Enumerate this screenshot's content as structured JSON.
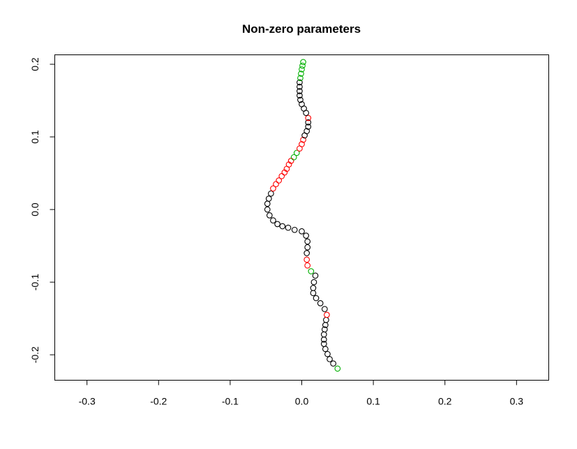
{
  "chart_data": {
    "type": "scatter",
    "title": "Non-zero parameters",
    "xlabel": "",
    "ylabel": "",
    "xlim": [
      -0.345,
      0.345
    ],
    "ylim": [
      -0.235,
      0.213
    ],
    "x_ticks": [
      -0.3,
      -0.2,
      -0.1,
      0.0,
      0.1,
      0.2,
      0.3
    ],
    "x_tick_labels": [
      "-0.3",
      "-0.2",
      "-0.1",
      "0.0",
      "0.1",
      "0.2",
      "0.3"
    ],
    "y_ticks": [
      -0.2,
      -0.1,
      0.0,
      0.1,
      0.2
    ],
    "y_tick_labels": [
      "-0.2",
      "-0.1",
      "0.0",
      "0.1",
      "0.2"
    ],
    "grid": false,
    "legend": "none",
    "colors": {
      "black": "#000000",
      "red": "#ff0000",
      "green": "#00b000"
    },
    "points": [
      {
        "x": 0.05,
        "y": -0.219,
        "c": "green"
      },
      {
        "x": 0.044,
        "y": -0.212,
        "c": "black"
      },
      {
        "x": 0.039,
        "y": -0.206,
        "c": "black"
      },
      {
        "x": 0.036,
        "y": -0.199,
        "c": "black"
      },
      {
        "x": 0.033,
        "y": -0.192,
        "c": "black"
      },
      {
        "x": 0.031,
        "y": -0.185,
        "c": "black"
      },
      {
        "x": 0.031,
        "y": -0.179,
        "c": "black"
      },
      {
        "x": 0.031,
        "y": -0.172,
        "c": "black"
      },
      {
        "x": 0.032,
        "y": -0.165,
        "c": "black"
      },
      {
        "x": 0.033,
        "y": -0.159,
        "c": "black"
      },
      {
        "x": 0.034,
        "y": -0.152,
        "c": "black"
      },
      {
        "x": 0.035,
        "y": -0.145,
        "c": "red"
      },
      {
        "x": 0.032,
        "y": -0.137,
        "c": "black"
      },
      {
        "x": 0.026,
        "y": -0.129,
        "c": "black"
      },
      {
        "x": 0.02,
        "y": -0.122,
        "c": "black"
      },
      {
        "x": 0.016,
        "y": -0.115,
        "c": "black"
      },
      {
        "x": 0.016,
        "y": -0.108,
        "c": "black"
      },
      {
        "x": 0.017,
        "y": -0.1,
        "c": "black"
      },
      {
        "x": 0.019,
        "y": -0.091,
        "c": "black"
      },
      {
        "x": 0.013,
        "y": -0.085,
        "c": "green"
      },
      {
        "x": 0.008,
        "y": -0.077,
        "c": "red"
      },
      {
        "x": 0.007,
        "y": -0.069,
        "c": "red"
      },
      {
        "x": 0.007,
        "y": -0.06,
        "c": "black"
      },
      {
        "x": 0.008,
        "y": -0.052,
        "c": "black"
      },
      {
        "x": 0.008,
        "y": -0.044,
        "c": "black"
      },
      {
        "x": 0.006,
        "y": -0.036,
        "c": "black"
      },
      {
        "x": 0.0,
        "y": -0.03,
        "c": "black"
      },
      {
        "x": -0.01,
        "y": -0.028,
        "c": "black"
      },
      {
        "x": -0.019,
        "y": -0.025,
        "c": "black"
      },
      {
        "x": -0.027,
        "y": -0.023,
        "c": "black"
      },
      {
        "x": -0.034,
        "y": -0.02,
        "c": "black"
      },
      {
        "x": -0.04,
        "y": -0.015,
        "c": "black"
      },
      {
        "x": -0.045,
        "y": -0.008,
        "c": "black"
      },
      {
        "x": -0.048,
        "y": 0.0,
        "c": "black"
      },
      {
        "x": -0.048,
        "y": 0.008,
        "c": "black"
      },
      {
        "x": -0.046,
        "y": 0.015,
        "c": "black"
      },
      {
        "x": -0.043,
        "y": 0.022,
        "c": "black"
      },
      {
        "x": -0.04,
        "y": 0.029,
        "c": "red"
      },
      {
        "x": -0.036,
        "y": 0.035,
        "c": "red"
      },
      {
        "x": -0.032,
        "y": 0.04,
        "c": "red"
      },
      {
        "x": -0.028,
        "y": 0.046,
        "c": "red"
      },
      {
        "x": -0.024,
        "y": 0.051,
        "c": "red"
      },
      {
        "x": -0.021,
        "y": 0.056,
        "c": "red"
      },
      {
        "x": -0.018,
        "y": 0.062,
        "c": "red"
      },
      {
        "x": -0.015,
        "y": 0.067,
        "c": "red"
      },
      {
        "x": -0.011,
        "y": 0.072,
        "c": "green"
      },
      {
        "x": -0.007,
        "y": 0.078,
        "c": "green"
      },
      {
        "x": -0.003,
        "y": 0.084,
        "c": "red"
      },
      {
        "x": 0.0,
        "y": 0.09,
        "c": "red"
      },
      {
        "x": 0.002,
        "y": 0.096,
        "c": "red"
      },
      {
        "x": 0.004,
        "y": 0.102,
        "c": "black"
      },
      {
        "x": 0.007,
        "y": 0.108,
        "c": "black"
      },
      {
        "x": 0.009,
        "y": 0.114,
        "c": "black"
      },
      {
        "x": 0.009,
        "y": 0.12,
        "c": "black"
      },
      {
        "x": 0.009,
        "y": 0.126,
        "c": "red"
      },
      {
        "x": 0.006,
        "y": 0.133,
        "c": "black"
      },
      {
        "x": 0.003,
        "y": 0.139,
        "c": "black"
      },
      {
        "x": 0.0,
        "y": 0.145,
        "c": "black"
      },
      {
        "x": -0.002,
        "y": 0.151,
        "c": "black"
      },
      {
        "x": -0.003,
        "y": 0.157,
        "c": "black"
      },
      {
        "x": -0.003,
        "y": 0.163,
        "c": "black"
      },
      {
        "x": -0.003,
        "y": 0.169,
        "c": "black"
      },
      {
        "x": -0.003,
        "y": 0.175,
        "c": "black"
      },
      {
        "x": -0.002,
        "y": 0.181,
        "c": "green"
      },
      {
        "x": -0.001,
        "y": 0.187,
        "c": "green"
      },
      {
        "x": 0.0,
        "y": 0.193,
        "c": "green"
      },
      {
        "x": 0.001,
        "y": 0.198,
        "c": "green"
      },
      {
        "x": 0.002,
        "y": 0.203,
        "c": "green"
      }
    ]
  }
}
